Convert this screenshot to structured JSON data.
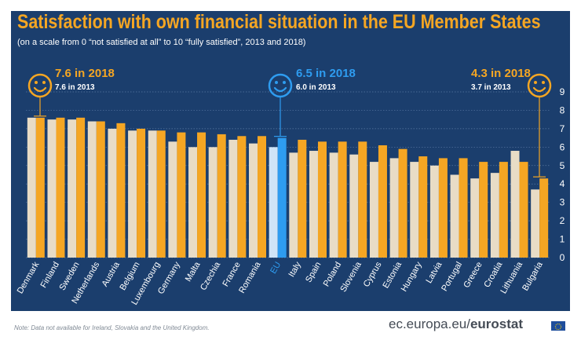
{
  "title": "Satisfaction with own financial situation in the EU Member States",
  "subtitle": "(on a scale from 0 “not satisfied at all” to 10 “fully satisfied”, 2013 and 2018)",
  "callouts": [
    {
      "main": "7.6 in 2018",
      "sub": "7.6 in 2013",
      "color": "#f5a623",
      "anchor": "Denmark",
      "icon": "smiley-icon"
    },
    {
      "main": "6.5 in 2018",
      "sub": "6.0 in 2013",
      "color": "#2e9cf0",
      "anchor": "EU",
      "icon": "smiley-icon"
    },
    {
      "main": "4.3 in 2018",
      "sub": "3.7 in 2013",
      "color": "#f5a623",
      "anchor": "Bulgaria",
      "icon": "smiley-icon"
    }
  ],
  "footer": {
    "note": "Note: Data not available for Ireland, Slovakia and the United Kingdom.",
    "source_prefix": "ec.europa.eu/",
    "source_bold": "eurostat"
  },
  "colors": {
    "background": "#1b3e6d",
    "bar_2013": "#e8dcc6",
    "bar_2018": "#f5a623",
    "eu_2013": "#cfe4f7",
    "eu_2018": "#2e9cf0",
    "title": "#f5a623"
  },
  "chart_data": {
    "type": "bar",
    "categories": [
      "Denmark",
      "Finland",
      "Sweden",
      "Netherlands",
      "Austria",
      "Belgium",
      "Luxembourg",
      "Germany",
      "Malta",
      "Czechia",
      "France",
      "Romania",
      "EU",
      "Italy",
      "Spain",
      "Poland",
      "Slovenia",
      "Cyprus",
      "Estonia",
      "Hungary",
      "Latvia",
      "Portugal",
      "Greece",
      "Croatia",
      "Lithuania",
      "Bulgaria"
    ],
    "series": [
      {
        "name": "2013",
        "values": [
          7.6,
          7.5,
          7.5,
          7.4,
          7.0,
          6.9,
          6.9,
          6.3,
          6.0,
          6.0,
          6.4,
          6.2,
          6.0,
          5.7,
          5.8,
          5.7,
          5.6,
          5.2,
          5.4,
          5.2,
          5.0,
          4.5,
          4.3,
          4.6,
          5.8,
          3.7
        ]
      },
      {
        "name": "2018",
        "values": [
          7.6,
          7.6,
          7.6,
          7.4,
          7.3,
          7.0,
          6.9,
          6.8,
          6.8,
          6.7,
          6.6,
          6.6,
          6.5,
          6.4,
          6.3,
          6.3,
          6.3,
          6.1,
          5.9,
          5.5,
          5.4,
          5.4,
          5.2,
          5.2,
          5.2,
          4.3
        ]
      }
    ],
    "highlight": "EU",
    "ylim": [
      0,
      9
    ],
    "yticks": [
      0,
      1,
      2,
      3,
      4,
      5,
      6,
      7,
      8,
      9
    ],
    "axis_side": "right",
    "grid": true,
    "legend": "none"
  }
}
